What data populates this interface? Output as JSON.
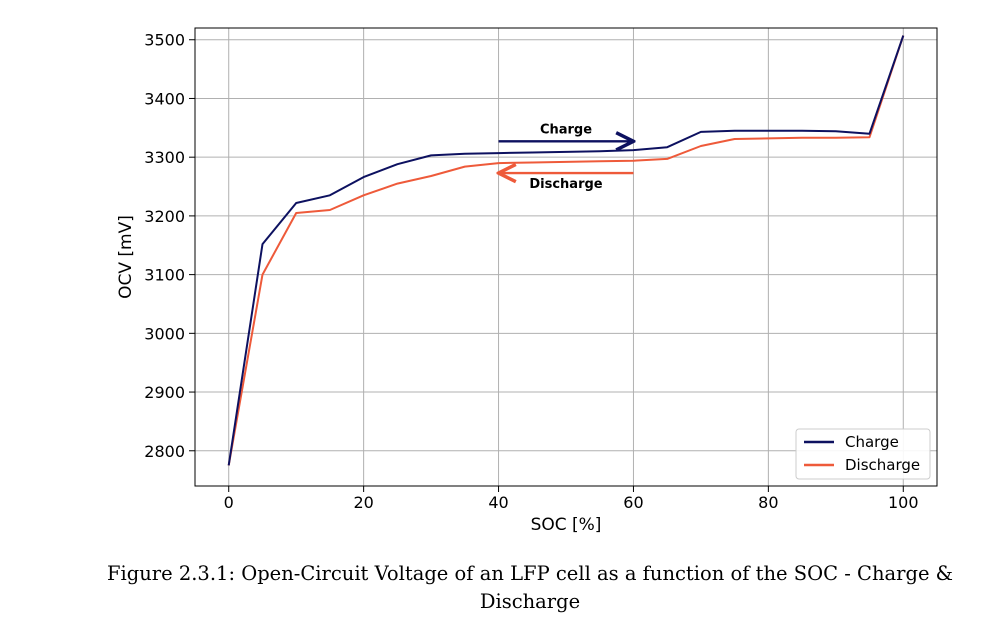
{
  "chart_data": {
    "type": "line",
    "xlabel": "SOC [%]",
    "ylabel": "OCV [mV]",
    "xlim": [
      -5,
      105
    ],
    "ylim": [
      2740,
      3520
    ],
    "xticks": [
      0,
      20,
      40,
      60,
      80,
      100
    ],
    "yticks": [
      2800,
      2900,
      3000,
      3100,
      3200,
      3300,
      3400,
      3500
    ],
    "grid": true,
    "legend_position": "bottom-right",
    "series": [
      {
        "name": "Charge",
        "color": "#0d1160",
        "points": [
          [
            0,
            2775
          ],
          [
            5,
            3152
          ],
          [
            10,
            3222
          ],
          [
            15,
            3235
          ],
          [
            20,
            3266
          ],
          [
            25,
            3288
          ],
          [
            30,
            3303
          ],
          [
            35,
            3306
          ],
          [
            40,
            3307
          ],
          [
            45,
            3308
          ],
          [
            50,
            3309
          ],
          [
            55,
            3310
          ],
          [
            60,
            3312
          ],
          [
            65,
            3317
          ],
          [
            70,
            3343
          ],
          [
            75,
            3345
          ],
          [
            80,
            3345
          ],
          [
            85,
            3345
          ],
          [
            90,
            3344
          ],
          [
            95,
            3340
          ],
          [
            100,
            3507
          ]
        ]
      },
      {
        "name": "Discharge",
        "color": "#ee5a3a",
        "points": [
          [
            0,
            2775
          ],
          [
            5,
            3100
          ],
          [
            10,
            3205
          ],
          [
            15,
            3210
          ],
          [
            20,
            3235
          ],
          [
            25,
            3255
          ],
          [
            30,
            3268
          ],
          [
            35,
            3284
          ],
          [
            40,
            3290
          ],
          [
            45,
            3291
          ],
          [
            50,
            3292
          ],
          [
            55,
            3293
          ],
          [
            60,
            3294
          ],
          [
            65,
            3297
          ],
          [
            70,
            3319
          ],
          [
            75,
            3331
          ],
          [
            80,
            3332
          ],
          [
            85,
            3333
          ],
          [
            90,
            3333
          ],
          [
            95,
            3334
          ],
          [
            100,
            3507
          ]
        ]
      }
    ],
    "annotations": [
      {
        "text": "Charge",
        "direction": "right",
        "color": "#0d1160",
        "x_from": 40,
        "x_to": 60,
        "y": 3327
      },
      {
        "text": "Discharge",
        "direction": "left",
        "color": "#ee5a3a",
        "x_from": 60,
        "x_to": 40,
        "y": 3273
      }
    ]
  },
  "caption": "Figure 2.3.1: Open-Circuit Voltage of an LFP cell as a function of the SOC - Charge & Discharge"
}
